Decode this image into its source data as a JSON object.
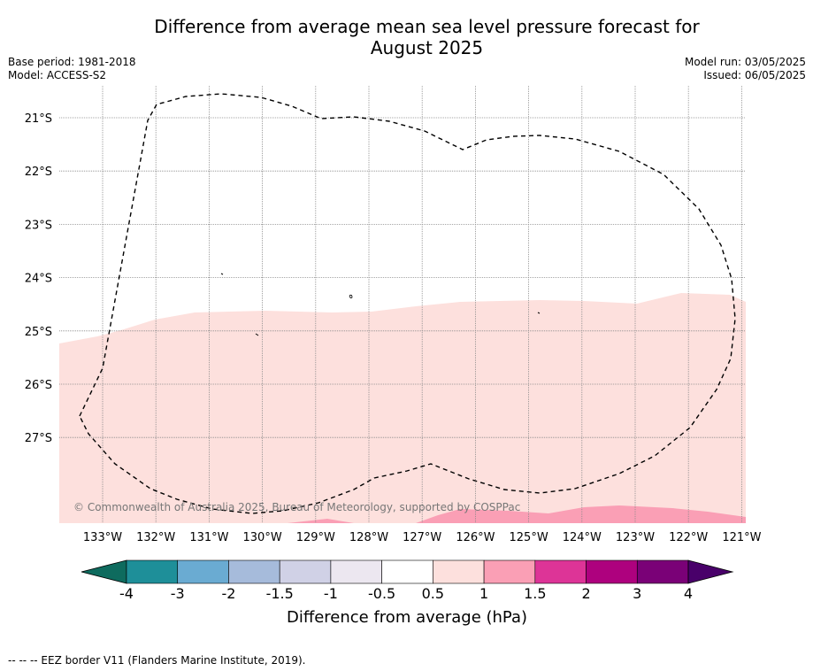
{
  "title_line1": "Difference from average mean sea level pressure forecast for",
  "title_line2": "August 2025",
  "meta_left": {
    "base_period": "Base period: 1981-2018",
    "model": "Model: ACCESS-S2"
  },
  "meta_right": {
    "model_run": "Model run: 03/05/2025",
    "issued": "Issued: 06/05/2025"
  },
  "lat_labels": [
    "21°S",
    "22°S",
    "23°S",
    "24°S",
    "25°S",
    "26°S",
    "27°S"
  ],
  "lon_labels": [
    "133°W",
    "132°W",
    "131°W",
    "130°W",
    "129°W",
    "128°W",
    "127°W",
    "126°W",
    "125°W",
    "124°W",
    "123°W",
    "122°W",
    "121°W"
  ],
  "copyright": "© Commonwealth of Australia 2025, Bureau of Meteorology, supported by COSPPac",
  "colorbar": {
    "title": "Difference from average (hPa)",
    "tick_labels": [
      "-4",
      "-3",
      "-2",
      "-1.5",
      "-1",
      "-0.5",
      "0.5",
      "1",
      "1.5",
      "2",
      "3",
      "4"
    ],
    "bins": [
      {
        "range": "<-4",
        "color": "#0e6b5e"
      },
      {
        "range": "-4 to -3",
        "color": "#1e8f99"
      },
      {
        "range": "-3 to -2",
        "color": "#6aabd2"
      },
      {
        "range": "-2 to -1.5",
        "color": "#a6bbdb"
      },
      {
        "range": "-1.5 to -1",
        "color": "#d0d1e6"
      },
      {
        "range": "-1 to -0.5",
        "color": "#ece7f0"
      },
      {
        "range": "-0.5 to 0.5",
        "color": "#ffffff"
      },
      {
        "range": "0.5 to 1",
        "color": "#fde0dd"
      },
      {
        "range": "1 to 1.5",
        "color": "#fa9fb5"
      },
      {
        "range": "1.5 to 2",
        "color": "#dd3497"
      },
      {
        "range": "2 to 3",
        "color": "#ae017e"
      },
      {
        "range": "3 to 4",
        "color": "#7a0177"
      },
      {
        "range": ">4",
        "color": "#49006a"
      }
    ]
  },
  "footer": "--  --  -- EEZ border V11 (Flanders Marine Institute, 2019)."
}
